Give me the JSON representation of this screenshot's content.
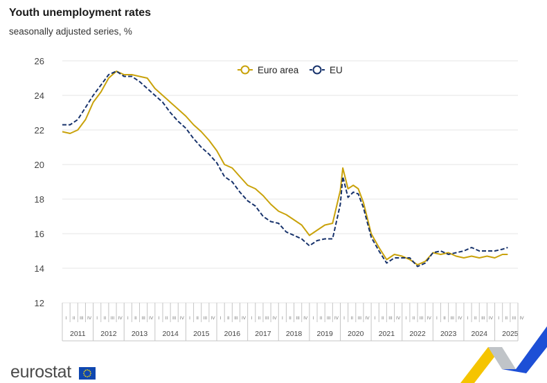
{
  "header": {
    "title": "Youth unemployment rates",
    "subtitle": "seasonally adjusted series, %"
  },
  "footer": {
    "logo": "eurostat"
  },
  "colors": {
    "euro_area": "#c9a20a",
    "eu": "#17326b",
    "grid": "#e6e6e6",
    "axis_text": "#444444"
  },
  "chart_data": {
    "type": "line",
    "title": "Youth unemployment rates",
    "subtitle": "seasonally adjusted series, %",
    "ylim": [
      12,
      26
    ],
    "yticks": [
      12,
      14,
      16,
      18,
      20,
      22,
      24,
      26
    ],
    "xlim": [
      2011.0,
      2025.75
    ],
    "x_unit": "year (quarter axis)",
    "years": [
      "2011",
      "2012",
      "2013",
      "2014",
      "2015",
      "2016",
      "2017",
      "2018",
      "2019",
      "2020",
      "2021",
      "2022",
      "2023",
      "2024",
      "2025"
    ],
    "quarters": [
      "I",
      "II",
      "III",
      "IV"
    ],
    "grid": true,
    "legend_position": "top-center",
    "series": [
      {
        "name": "Euro area",
        "style": "solid",
        "x": [
          2011.0,
          2011.25,
          2011.5,
          2011.75,
          2012.0,
          2012.25,
          2012.5,
          2012.75,
          2013.0,
          2013.25,
          2013.5,
          2013.75,
          2014.0,
          2014.25,
          2014.5,
          2014.75,
          2015.0,
          2015.25,
          2015.5,
          2015.75,
          2016.0,
          2016.25,
          2016.5,
          2016.75,
          2017.0,
          2017.25,
          2017.5,
          2017.75,
          2018.0,
          2018.25,
          2018.5,
          2018.75,
          2019.0,
          2019.25,
          2019.5,
          2019.75,
          2020.0,
          2020.08,
          2020.25,
          2020.42,
          2020.58,
          2020.75,
          2021.0,
          2021.25,
          2021.5,
          2021.75,
          2022.0,
          2022.25,
          2022.5,
          2022.75,
          2023.0,
          2023.25,
          2023.5,
          2023.75,
          2024.0,
          2024.25,
          2024.5,
          2024.75,
          2025.0,
          2025.25,
          2025.42
        ],
        "y": [
          21.9,
          21.8,
          22.0,
          22.6,
          23.6,
          24.2,
          25.0,
          25.4,
          25.2,
          25.2,
          25.1,
          25.0,
          24.4,
          24.0,
          23.6,
          23.2,
          22.8,
          22.3,
          21.9,
          21.4,
          20.8,
          20.0,
          19.8,
          19.3,
          18.8,
          18.6,
          18.2,
          17.7,
          17.3,
          17.1,
          16.8,
          16.5,
          15.9,
          16.2,
          16.5,
          16.6,
          18.5,
          19.8,
          18.6,
          18.8,
          18.6,
          17.8,
          16.0,
          15.2,
          14.5,
          14.8,
          14.7,
          14.5,
          14.2,
          14.4,
          14.9,
          14.8,
          14.9,
          14.7,
          14.6,
          14.7,
          14.6,
          14.7,
          14.6,
          14.8,
          14.8
        ]
      },
      {
        "name": "EU",
        "style": "dashed",
        "x": [
          2011.0,
          2011.25,
          2011.5,
          2011.75,
          2012.0,
          2012.25,
          2012.5,
          2012.75,
          2013.0,
          2013.25,
          2013.5,
          2013.75,
          2014.0,
          2014.25,
          2014.5,
          2014.75,
          2015.0,
          2015.25,
          2015.5,
          2015.75,
          2016.0,
          2016.25,
          2016.5,
          2016.75,
          2017.0,
          2017.25,
          2017.5,
          2017.75,
          2018.0,
          2018.25,
          2018.5,
          2018.75,
          2019.0,
          2019.25,
          2019.5,
          2019.75,
          2020.0,
          2020.08,
          2020.25,
          2020.42,
          2020.58,
          2020.75,
          2021.0,
          2021.25,
          2021.5,
          2021.75,
          2022.0,
          2022.25,
          2022.5,
          2022.75,
          2023.0,
          2023.25,
          2023.5,
          2023.75,
          2024.0,
          2024.25,
          2024.5,
          2024.75,
          2025.0,
          2025.25,
          2025.42
        ],
        "y": [
          22.3,
          22.3,
          22.6,
          23.3,
          24.0,
          24.6,
          25.2,
          25.4,
          25.1,
          25.1,
          24.8,
          24.4,
          24.0,
          23.6,
          23.0,
          22.5,
          22.1,
          21.5,
          21.0,
          20.6,
          20.1,
          19.3,
          19.0,
          18.4,
          17.9,
          17.6,
          17.0,
          16.7,
          16.6,
          16.1,
          15.9,
          15.7,
          15.3,
          15.6,
          15.7,
          15.7,
          17.7,
          19.3,
          18.1,
          18.4,
          18.3,
          17.5,
          15.8,
          15.0,
          14.3,
          14.6,
          14.6,
          14.6,
          14.1,
          14.3,
          14.9,
          15.0,
          14.8,
          14.9,
          15.0,
          15.2,
          15.0,
          15.0,
          15.0,
          15.1,
          15.2
        ]
      }
    ]
  }
}
